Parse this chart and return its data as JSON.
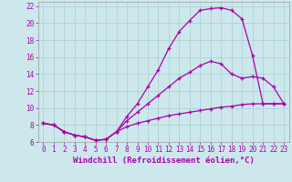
{
  "xlabel": "Windchill (Refroidissement éolien,°C)",
  "bg_color": "#cce8ed",
  "line_color": "#aa00aa",
  "grid_color": "#aacccc",
  "xlim": [
    -0.5,
    23.5
  ],
  "ylim": [
    6,
    22.5
  ],
  "xticks": [
    0,
    1,
    2,
    3,
    4,
    5,
    6,
    7,
    8,
    9,
    10,
    11,
    12,
    13,
    14,
    15,
    16,
    17,
    18,
    19,
    20,
    21,
    22,
    23
  ],
  "yticks": [
    6,
    8,
    10,
    12,
    14,
    16,
    18,
    20,
    22
  ],
  "line1_x": [
    0,
    1,
    2,
    3,
    4,
    5,
    6,
    7,
    8,
    9,
    10,
    11,
    12,
    13,
    14,
    15,
    16,
    17,
    18,
    19,
    20,
    21,
    22,
    23
  ],
  "line1_y": [
    8.2,
    8.0,
    7.2,
    6.8,
    6.6,
    6.2,
    6.3,
    7.2,
    9.0,
    10.5,
    12.5,
    14.5,
    17.0,
    19.0,
    20.3,
    21.5,
    21.7,
    21.8,
    21.5,
    20.5,
    16.2,
    10.5,
    10.5,
    10.5
  ],
  "line2_x": [
    0,
    1,
    2,
    3,
    4,
    5,
    6,
    7,
    8,
    9,
    10,
    11,
    12,
    13,
    14,
    15,
    16,
    17,
    18,
    19,
    20,
    21,
    22,
    23
  ],
  "line2_y": [
    8.2,
    8.0,
    7.2,
    6.8,
    6.6,
    6.2,
    6.3,
    7.2,
    8.5,
    9.5,
    10.5,
    11.5,
    12.5,
    13.5,
    14.2,
    15.0,
    15.5,
    15.2,
    14.0,
    13.5,
    13.7,
    13.5,
    12.5,
    10.5
  ],
  "line3_x": [
    0,
    1,
    2,
    3,
    4,
    5,
    6,
    7,
    8,
    9,
    10,
    11,
    12,
    13,
    14,
    15,
    16,
    17,
    18,
    19,
    20,
    21,
    22,
    23
  ],
  "line3_y": [
    8.2,
    8.0,
    7.2,
    6.8,
    6.6,
    6.2,
    6.3,
    7.2,
    7.8,
    8.2,
    8.5,
    8.8,
    9.1,
    9.3,
    9.5,
    9.7,
    9.9,
    10.1,
    10.2,
    10.4,
    10.5,
    10.5,
    10.5,
    10.5
  ],
  "tick_fontsize": 5.5,
  "xlabel_fontsize": 6.5
}
